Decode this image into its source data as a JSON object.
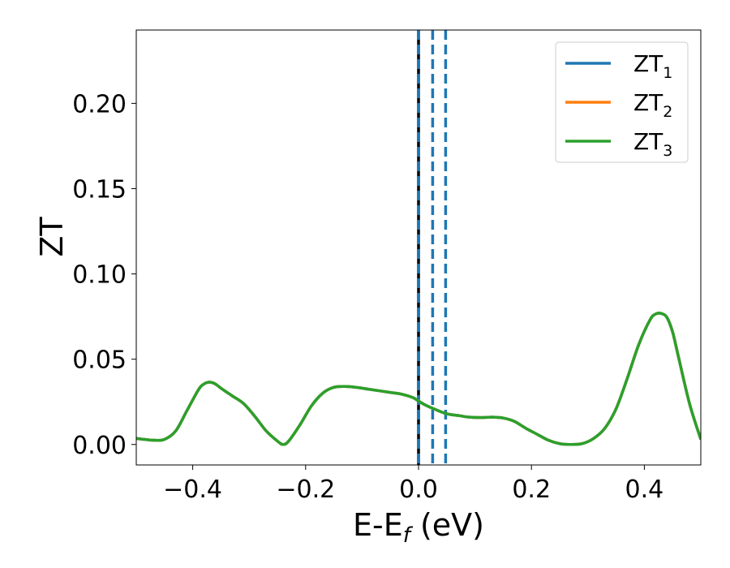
{
  "chart_data": {
    "type": "line",
    "xlabel": "E-E",
    "xlabel_sub": "f",
    "xlabel_unit": " (eV)",
    "ylabel": "ZT",
    "xlim": [
      -0.5,
      0.5
    ],
    "ylim": [
      -0.012,
      0.243
    ],
    "x_ticks": [
      -0.4,
      -0.2,
      0.0,
      0.2,
      0.4
    ],
    "x_tick_labels": [
      "−0.4",
      "−0.2",
      "0.0",
      "0.2",
      "0.4"
    ],
    "y_ticks": [
      0.0,
      0.05,
      0.1,
      0.15,
      0.2
    ],
    "y_tick_labels": [
      "0.00",
      "0.05",
      "0.10",
      "0.15",
      "0.20"
    ],
    "grid": false,
    "legend_position": "top-right",
    "series": [
      {
        "name": "ZT",
        "sub": "1",
        "color": "#1f77b4",
        "x": [
          -0.5,
          -0.47,
          -0.45,
          -0.43,
          -0.41,
          -0.39,
          -0.38,
          -0.37,
          -0.36,
          -0.35,
          -0.33,
          -0.31,
          -0.29,
          -0.27,
          -0.25,
          -0.24,
          -0.23,
          -0.21,
          -0.19,
          -0.17,
          -0.15,
          -0.13,
          -0.11,
          -0.09,
          -0.07,
          -0.05,
          -0.03,
          -0.01,
          0.0,
          0.01,
          0.03,
          0.05,
          0.07,
          0.09,
          0.11,
          0.13,
          0.15,
          0.17,
          0.19,
          0.21,
          0.23,
          0.25,
          0.27,
          0.29,
          0.31,
          0.33,
          0.35,
          0.37,
          0.39,
          0.41,
          0.42,
          0.43,
          0.44,
          0.45,
          0.46,
          0.48,
          0.5
        ],
        "y": [
          0.0035,
          0.0025,
          0.003,
          0.008,
          0.02,
          0.032,
          0.0355,
          0.0365,
          0.0355,
          0.033,
          0.0285,
          0.024,
          0.0165,
          0.008,
          0.002,
          0.0,
          0.002,
          0.0115,
          0.0225,
          0.03,
          0.0335,
          0.034,
          0.0335,
          0.0325,
          0.0315,
          0.0305,
          0.0295,
          0.0275,
          0.0255,
          0.0235,
          0.0205,
          0.018,
          0.017,
          0.016,
          0.0158,
          0.016,
          0.0155,
          0.0135,
          0.0095,
          0.006,
          0.0025,
          0.0005,
          0.0,
          0.0005,
          0.0035,
          0.0095,
          0.021,
          0.039,
          0.0585,
          0.073,
          0.0765,
          0.0768,
          0.0745,
          0.066,
          0.052,
          0.024,
          0.003
        ]
      },
      {
        "name": "ZT",
        "sub": "2",
        "color": "#ff7f0e",
        "x": [
          -0.5,
          -0.47,
          -0.45,
          -0.43,
          -0.41,
          -0.39,
          -0.38,
          -0.37,
          -0.36,
          -0.35,
          -0.33,
          -0.31,
          -0.29,
          -0.27,
          -0.25,
          -0.24,
          -0.23,
          -0.21,
          -0.19,
          -0.17,
          -0.15,
          -0.13,
          -0.11,
          -0.09,
          -0.07,
          -0.05,
          -0.03,
          -0.01,
          0.0,
          0.01,
          0.03,
          0.05,
          0.07,
          0.09,
          0.11,
          0.13,
          0.15,
          0.17,
          0.19,
          0.21,
          0.23,
          0.25,
          0.27,
          0.29,
          0.31,
          0.33,
          0.35,
          0.37,
          0.39,
          0.41,
          0.42,
          0.43,
          0.44,
          0.45,
          0.46,
          0.48,
          0.5
        ],
        "y": [
          0.0035,
          0.0025,
          0.003,
          0.008,
          0.02,
          0.032,
          0.0355,
          0.0365,
          0.0355,
          0.033,
          0.0285,
          0.024,
          0.0165,
          0.008,
          0.002,
          0.0,
          0.002,
          0.0115,
          0.0225,
          0.03,
          0.0335,
          0.034,
          0.0335,
          0.0325,
          0.0315,
          0.0305,
          0.0295,
          0.0275,
          0.0255,
          0.0235,
          0.0205,
          0.018,
          0.017,
          0.016,
          0.0158,
          0.016,
          0.0155,
          0.0135,
          0.0095,
          0.006,
          0.0025,
          0.0005,
          0.0,
          0.0005,
          0.0035,
          0.0095,
          0.021,
          0.039,
          0.0585,
          0.073,
          0.0765,
          0.0768,
          0.0745,
          0.066,
          0.052,
          0.024,
          0.003
        ]
      },
      {
        "name": "ZT",
        "sub": "3",
        "color": "#2ca02c",
        "x": [
          -0.5,
          -0.47,
          -0.45,
          -0.43,
          -0.41,
          -0.39,
          -0.38,
          -0.37,
          -0.36,
          -0.35,
          -0.33,
          -0.31,
          -0.29,
          -0.27,
          -0.25,
          -0.24,
          -0.23,
          -0.21,
          -0.19,
          -0.17,
          -0.15,
          -0.13,
          -0.11,
          -0.09,
          -0.07,
          -0.05,
          -0.03,
          -0.01,
          0.0,
          0.01,
          0.03,
          0.05,
          0.07,
          0.09,
          0.11,
          0.13,
          0.15,
          0.17,
          0.19,
          0.21,
          0.23,
          0.25,
          0.27,
          0.29,
          0.31,
          0.33,
          0.35,
          0.37,
          0.39,
          0.41,
          0.42,
          0.43,
          0.44,
          0.45,
          0.46,
          0.48,
          0.5
        ],
        "y": [
          0.0035,
          0.0025,
          0.003,
          0.008,
          0.02,
          0.032,
          0.0355,
          0.0365,
          0.0355,
          0.033,
          0.0285,
          0.024,
          0.0165,
          0.008,
          0.002,
          0.0,
          0.002,
          0.0115,
          0.0225,
          0.03,
          0.0335,
          0.034,
          0.0335,
          0.0325,
          0.0315,
          0.0305,
          0.0295,
          0.0275,
          0.0255,
          0.0235,
          0.0205,
          0.018,
          0.017,
          0.016,
          0.0158,
          0.016,
          0.0155,
          0.0135,
          0.0095,
          0.006,
          0.0025,
          0.0005,
          0.0,
          0.0005,
          0.0035,
          0.0095,
          0.021,
          0.039,
          0.0585,
          0.073,
          0.0765,
          0.0768,
          0.0745,
          0.066,
          0.052,
          0.024,
          0.003
        ]
      }
    ],
    "vertical_lines": [
      {
        "x": 0.0,
        "color": "#000000",
        "style": "solid"
      },
      {
        "x": 0.0,
        "color": "#1f77b4",
        "style": "dashed"
      },
      {
        "x": 0.025,
        "color": "#1f77b4",
        "style": "dashed"
      },
      {
        "x": 0.048,
        "color": "#1f77b4",
        "style": "dashed"
      }
    ]
  }
}
